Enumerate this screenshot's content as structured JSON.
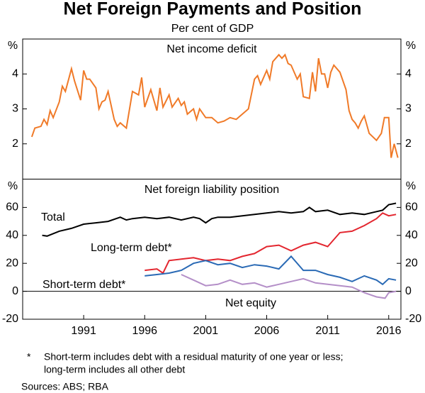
{
  "title": "Net Foreign Payments and Position",
  "subtitle": "Per cent of GDP",
  "notes": [
    "*",
    "Short-term includes debt with a residual maturity of one year or less;",
    "long-term includes all other debt"
  ],
  "sources": "Sources:  ABS; RBA",
  "chart_data": [
    {
      "type": "line",
      "title": "Net income deficit",
      "y_unit": "%",
      "xlim": [
        1986,
        2017
      ],
      "ylim": [
        1,
        5
      ],
      "yticks": [
        2,
        3,
        4
      ],
      "series": [
        {
          "color": "#f07a28",
          "x": [
            1986.75,
            1987,
            1987.5,
            1987.75,
            1988,
            1988.25,
            1988.5,
            1989,
            1989.25,
            1989.5,
            1990,
            1990.25,
            1990.75,
            1991,
            1991.25,
            1991.5,
            1992,
            1992.25,
            1992.5,
            1992.75,
            1993,
            1993.5,
            1993.75,
            1994,
            1994.5,
            1995,
            1995.5,
            1995.75,
            1996,
            1996.5,
            1997,
            1997.25,
            1997.5,
            1998,
            1998.25,
            1998.75,
            1999,
            1999.25,
            1999.5,
            2000,
            2000.25,
            2000.5,
            2001,
            2001.5,
            2002,
            2002.5,
            2003,
            2003.5,
            2004,
            2004.5,
            2005,
            2005.25,
            2005.5,
            2006,
            2006.25,
            2006.5,
            2007,
            2007.25,
            2007.5,
            2007.75,
            2008,
            2008.5,
            2008.75,
            2009,
            2009.5,
            2009.75,
            2010,
            2010.25,
            2010.5,
            2010.75,
            2011,
            2011.25,
            2011.5,
            2012,
            2012.5,
            2012.75,
            2013,
            2013.25,
            2013.5,
            2013.75,
            2014,
            2014.4,
            2015,
            2015.4,
            2015.65,
            2016,
            2016.2,
            2016.45,
            2016.75
          ],
          "values": [
            2.2,
            2.45,
            2.5,
            2.7,
            2.55,
            2.95,
            2.75,
            3.2,
            3.65,
            3.5,
            4.15,
            3.8,
            3.25,
            4.1,
            3.85,
            3.85,
            3.6,
            3.0,
            3.2,
            3.25,
            3.5,
            2.7,
            2.5,
            2.6,
            2.45,
            3.5,
            3.4,
            3.9,
            3.05,
            3.55,
            2.95,
            3.6,
            3.05,
            3.4,
            3.05,
            3.3,
            3.1,
            3.2,
            2.85,
            3.0,
            2.7,
            3.0,
            2.75,
            2.75,
            2.6,
            2.65,
            2.75,
            2.7,
            2.85,
            3.0,
            3.85,
            3.95,
            3.7,
            4.1,
            3.85,
            4.35,
            4.55,
            4.45,
            4.55,
            4.3,
            4.25,
            3.85,
            4.0,
            3.35,
            3.3,
            4.05,
            3.5,
            4.45,
            4.0,
            4.0,
            3.6,
            4.05,
            4.25,
            4.05,
            3.55,
            2.95,
            2.7,
            2.6,
            2.45,
            2.65,
            2.8,
            2.3,
            2.1,
            2.3,
            2.75,
            2.75,
            1.6,
            2.0,
            1.6
          ]
        }
      ]
    },
    {
      "type": "line",
      "title": "Net foreign liability position",
      "y_unit": "%",
      "xlim": [
        1986,
        2017
      ],
      "ylim": [
        -20,
        80
      ],
      "yticks": [
        -20,
        0,
        20,
        40,
        60
      ],
      "xticks": [
        1991,
        1996,
        2001,
        2006,
        2011,
        2016
      ],
      "series": [
        {
          "name": "Total",
          "color": "#000000",
          "x": [
            1987.6,
            1988,
            1989,
            1990,
            1991,
            1992,
            1993,
            1994,
            1994.5,
            1995,
            1996,
            1997,
            1998,
            1999,
            2000,
            2000.5,
            2001,
            2001.5,
            2002,
            2003,
            2004,
            2005,
            2006,
            2007,
            2008,
            2009,
            2009.5,
            2010,
            2011,
            2012,
            2013,
            2014,
            2015,
            2015.5,
            2016,
            2016.6
          ],
          "values": [
            40,
            39.5,
            43,
            45,
            48,
            49,
            50,
            53,
            51,
            52,
            53,
            52,
            53,
            51,
            53,
            52,
            49,
            52,
            53,
            53,
            54,
            55,
            56,
            57,
            56,
            57,
            60,
            57,
            58,
            55,
            56,
            55,
            57,
            58,
            62,
            63
          ]
        },
        {
          "name": "Long-term debt*",
          "color": "#e3262f",
          "x": [
            1996,
            1997,
            1997.5,
            1998,
            1999,
            2000,
            2001,
            2002,
            2003,
            2004,
            2005,
            2006,
            2007,
            2008,
            2009,
            2010,
            2011,
            2012,
            2013,
            2014,
            2015,
            2015.5,
            2016,
            2016.6
          ],
          "values": [
            15,
            16,
            13,
            22,
            23,
            24,
            22,
            23,
            22,
            25,
            27,
            32,
            33,
            29,
            33,
            35,
            32,
            42,
            43,
            47,
            52,
            56,
            54,
            55
          ]
        },
        {
          "name": "Short-term debt*",
          "color": "#2a6ab5",
          "x": [
            1996,
            1997,
            1998,
            1999,
            2000,
            2001,
            2002,
            2003,
            2004,
            2005,
            2006,
            2007,
            2008,
            2009,
            2010,
            2011,
            2012,
            2013,
            2014,
            2015,
            2015.5,
            2016,
            2016.6
          ],
          "values": [
            11,
            12,
            13,
            15,
            20,
            22,
            19,
            20,
            17,
            19,
            18,
            16,
            25,
            15,
            15,
            12,
            10,
            7,
            11,
            8,
            5,
            9,
            8
          ]
        },
        {
          "name": "Net equity",
          "color": "#b48fc8",
          "x": [
            1999,
            2000,
            2001,
            2002,
            2003,
            2004,
            2005,
            2006,
            2007,
            2008,
            2009,
            2010,
            2011,
            2012,
            2013,
            2014,
            2015,
            2015.7,
            2016,
            2016.6
          ],
          "values": [
            12,
            8,
            4,
            5,
            8,
            5,
            6,
            3,
            5,
            7,
            9,
            6,
            5,
            4,
            3,
            -1,
            -4,
            -5,
            -1,
            0
          ]
        }
      ]
    }
  ]
}
